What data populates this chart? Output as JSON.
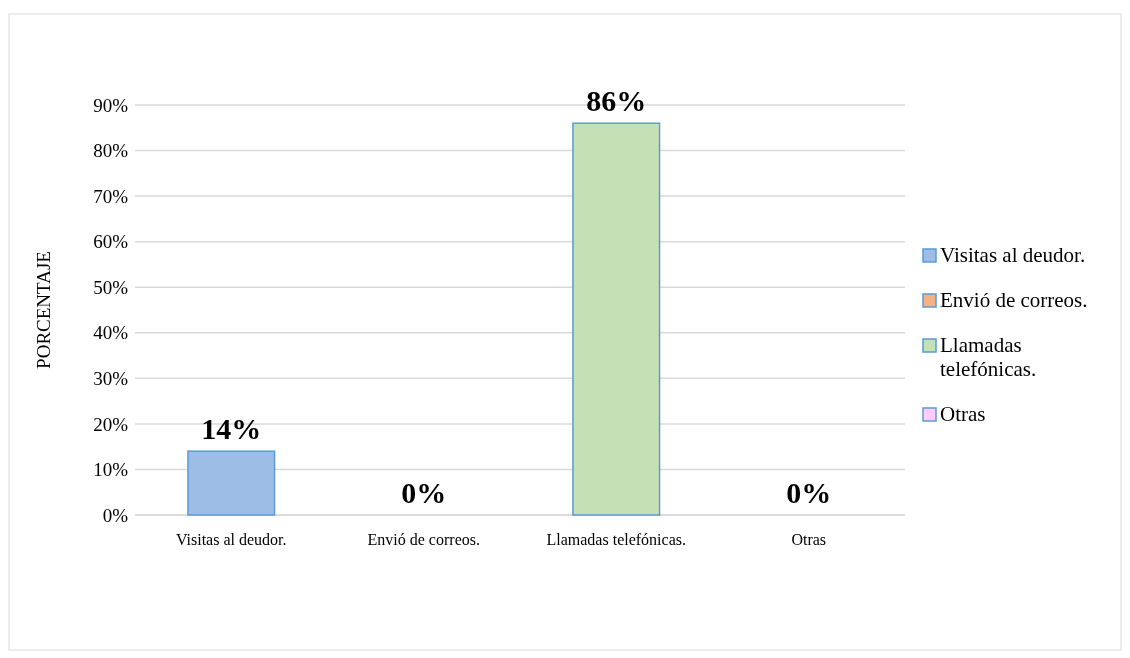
{
  "chart_data": {
    "type": "bar",
    "ylabel": "PORCENTAJE",
    "stacked": true,
    "categories": [
      "Visitas al deudor.",
      "Envió de correos.",
      "Llamadas telefónicas.",
      "Otras"
    ],
    "series": [
      {
        "name": "Visitas al deudor.",
        "color": "#9dbde6",
        "values": [
          14,
          null,
          null,
          null
        ]
      },
      {
        "name": "Envió de correos.",
        "color": "#f4b183",
        "values": [
          null,
          0,
          null,
          null
        ]
      },
      {
        "name": "Llamadas telefónicas.",
        "color": "#c5e0b4",
        "values": [
          null,
          null,
          86,
          null
        ]
      },
      {
        "name": "Otras",
        "color": "#ffccff",
        "values": [
          null,
          null,
          null,
          0
        ]
      }
    ],
    "value_labels": [
      "14%",
      "0%",
      "86%",
      "0%"
    ],
    "ylim": [
      0,
      90
    ],
    "yticks": [
      {
        "value": 0,
        "label": "0%"
      },
      {
        "value": 10,
        "label": "10%"
      },
      {
        "value": 20,
        "label": "20%"
      },
      {
        "value": 30,
        "label": "30%"
      },
      {
        "value": 40,
        "label": "40%"
      },
      {
        "value": 50,
        "label": "50%"
      },
      {
        "value": 60,
        "label": "60%"
      },
      {
        "value": 70,
        "label": "70%"
      },
      {
        "value": 80,
        "label": "80%"
      },
      {
        "value": 90,
        "label": "90%"
      }
    ],
    "grid": "y",
    "legend": "right"
  }
}
